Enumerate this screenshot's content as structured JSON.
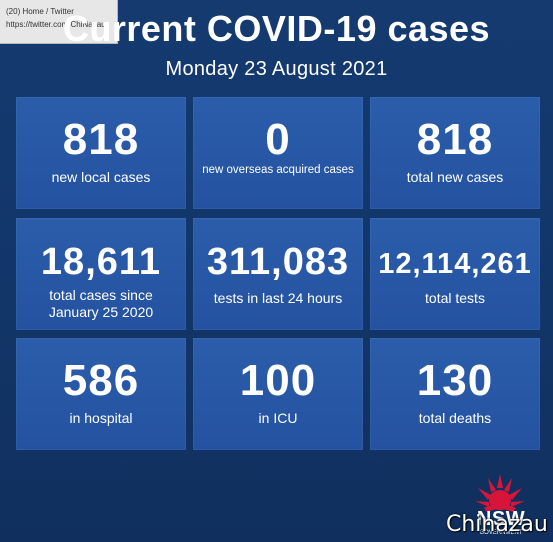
{
  "tooltip": {
    "line1": "(20) Home / Twitter",
    "line2": "https://twitter.com/ChiNazau"
  },
  "header": {
    "title": "Current COVID-19 cases",
    "subtitle": "Monday 23 August 2021"
  },
  "tiles": [
    {
      "value": "818",
      "label": "new local cases"
    },
    {
      "value": "0",
      "label": "new overseas acquired cases"
    },
    {
      "value": "818",
      "label": "total new cases"
    },
    {
      "value": "18,611",
      "label": "total cases since January 25 2020"
    },
    {
      "value": "311,083",
      "label": "tests in last 24 hours"
    },
    {
      "value": "12,114,261",
      "label": "total tests"
    },
    {
      "value": "586",
      "label": "in hospital"
    },
    {
      "value": "100",
      "label": "in ICU"
    },
    {
      "value": "130",
      "label": "total deaths"
    }
  ],
  "logo": {
    "text": "NSW",
    "subtext": "GOVERNMENT",
    "icon": "waratah-icon",
    "color": "#d7153a"
  },
  "watermark": "Chinazau",
  "colors": {
    "background": "#13396f",
    "tile": "#2858a6",
    "text": "#ffffff"
  }
}
